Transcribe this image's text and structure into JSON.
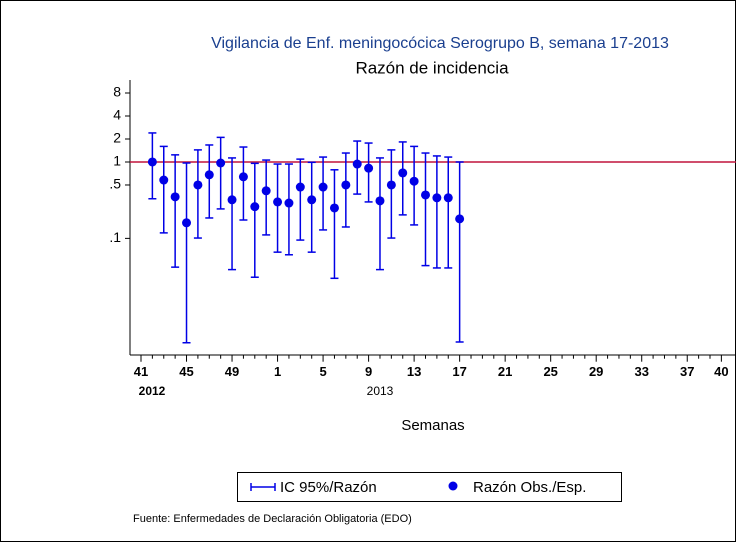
{
  "chart_data": {
    "type": "errorbar",
    "title": "Vigilancia de Enf. meningocócica Serogrupo B, semana 17-2013",
    "subtitle": "Razón de incidencia",
    "x_label": "Semanas",
    "source": "Fuente: Enfermedades de Declaración Obligatoria (EDO)",
    "year_labels": [
      "2012",
      "2013"
    ],
    "categories": [
      "41",
      null,
      null,
      null,
      "45",
      null,
      null,
      null,
      "49",
      null,
      null,
      null,
      "1",
      null,
      null,
      null,
      "5",
      null,
      null,
      null,
      "9",
      null,
      null,
      null,
      "13",
      null,
      null,
      null,
      "17",
      null,
      null,
      null,
      "21",
      null,
      null,
      null,
      "25",
      null,
      null,
      null,
      "29",
      null,
      null,
      null,
      "33",
      null,
      null,
      null,
      "37",
      null,
      null,
      "40"
    ],
    "series": [
      {
        "name": "IC 95%/Razón",
        "color": "#0000e6",
        "lower": [
          null,
          0.33,
          0.118,
          0.042,
          0.0043,
          0.101,
          0.185,
          0.243,
          0.039,
          0.174,
          0.031,
          0.111,
          0.066,
          0.061,
          0.095,
          0.066,
          0.129,
          0.03,
          0.141,
          0.38,
          0.3,
          0.039,
          0.101,
          0.203,
          0.15,
          0.044,
          0.041,
          0.041,
          0.0044,
          null,
          null,
          null,
          null,
          null,
          null,
          null,
          null,
          null,
          null,
          null,
          null,
          null,
          null,
          null,
          null,
          null,
          null,
          null,
          null,
          null,
          null,
          null
        ],
        "upper": [
          null,
          2.4,
          1.6,
          1.24,
          0.97,
          1.44,
          1.67,
          2.1,
          1.13,
          1.57,
          0.96,
          1.06,
          0.94,
          0.94,
          1.09,
          0.99,
          1.16,
          0.79,
          1.31,
          1.88,
          1.77,
          1.13,
          1.44,
          1.83,
          1.6,
          1.31,
          1.2,
          1.16,
          1.0,
          null,
          null,
          null,
          null,
          null,
          null,
          null,
          null,
          null,
          null,
          null,
          null,
          null,
          null,
          null,
          null,
          null,
          null,
          null,
          null,
          null,
          null,
          null
        ]
      },
      {
        "name": "Razón Obs./Esp.",
        "color": "#0000e6",
        "values": [
          null,
          1.0,
          0.58,
          0.35,
          0.16,
          0.5,
          0.68,
          0.97,
          0.32,
          0.64,
          0.26,
          0.42,
          0.3,
          0.29,
          0.47,
          0.32,
          0.47,
          0.25,
          0.5,
          0.94,
          0.83,
          0.31,
          0.5,
          0.72,
          0.56,
          0.37,
          0.34,
          0.34,
          0.18,
          null,
          null,
          null,
          null,
          null,
          null,
          null,
          null,
          null,
          null,
          null,
          null,
          null,
          null,
          null,
          null,
          null,
          null,
          null,
          null,
          null,
          null,
          null
        ]
      }
    ],
    "reference_line": {
      "value": 1,
      "color": "#c0143c"
    },
    "ylim": [
      0.003,
      10
    ],
    "log_y": true,
    "yticks": [
      8,
      4,
      2,
      1,
      {
        "value": 0.5,
        "label": ".5"
      },
      {
        "value": 0.1,
        "label": ".1"
      }
    ]
  }
}
